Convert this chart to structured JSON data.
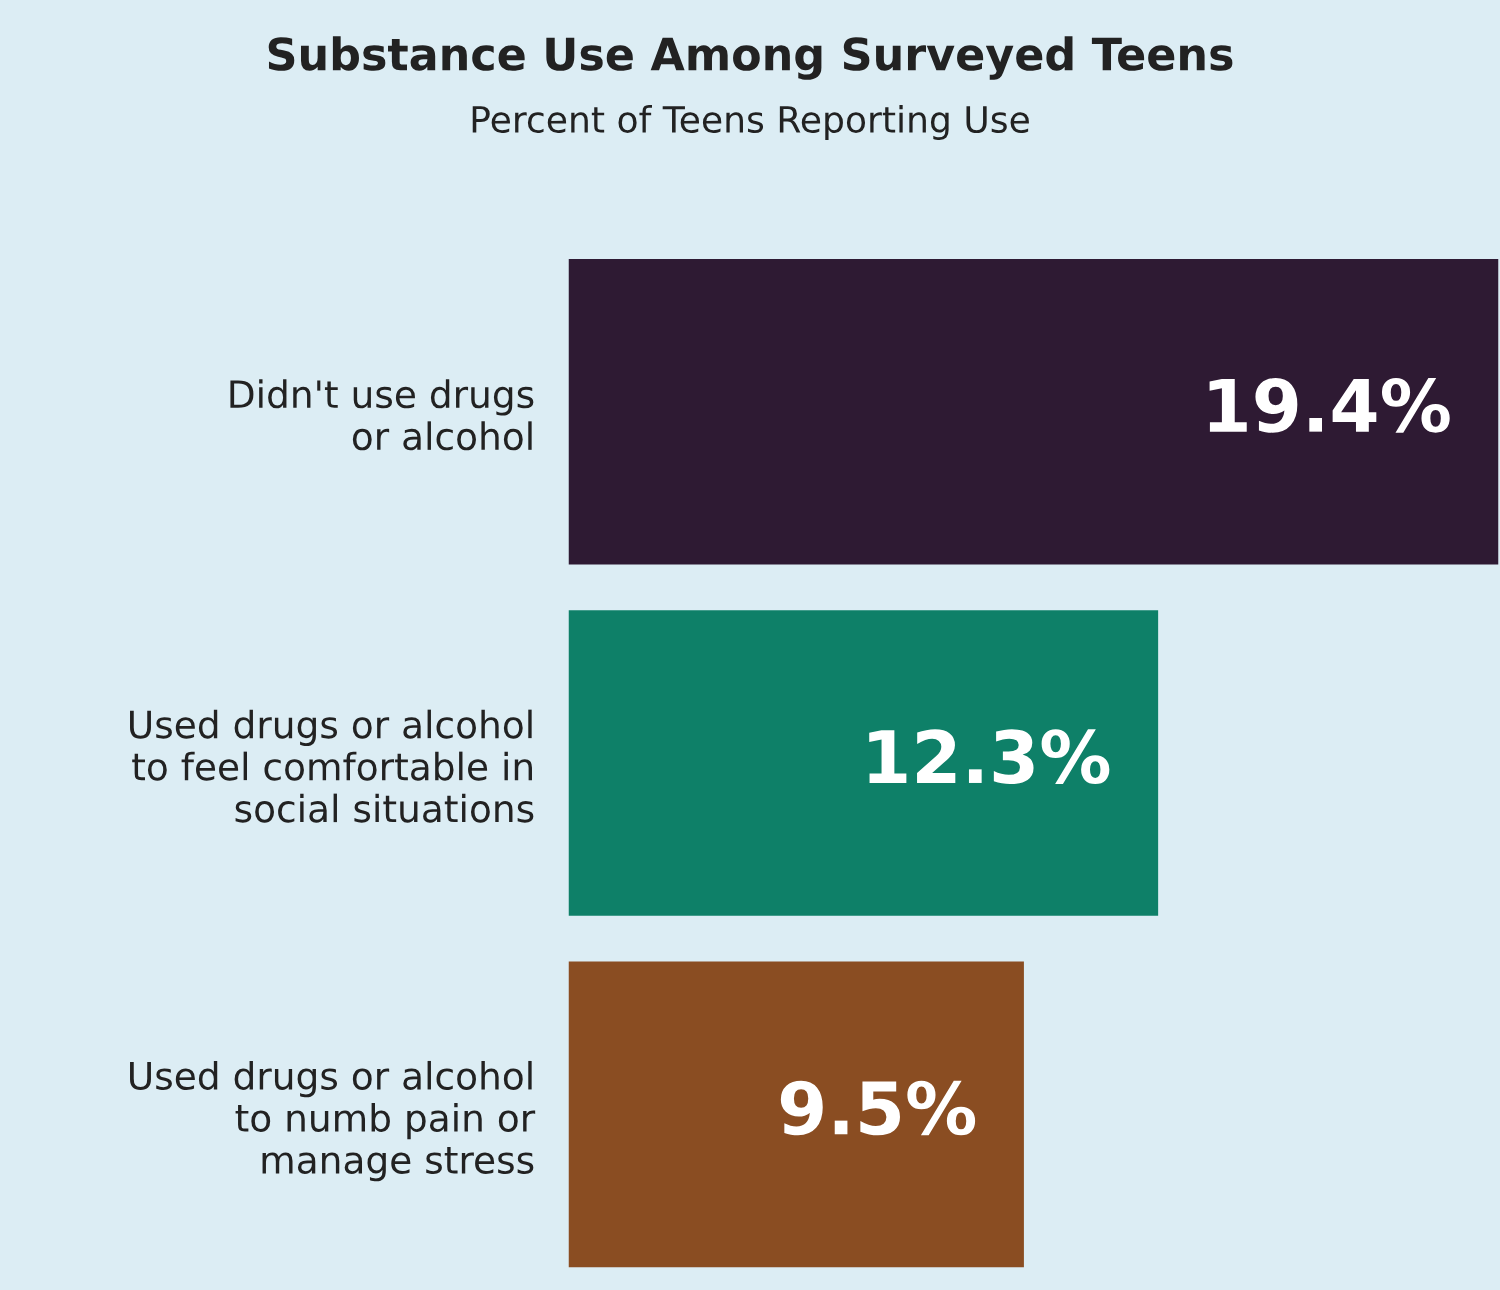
{
  "chart_data": {
    "type": "bar",
    "orientation": "horizontal",
    "title": "Substance Use Among Surveyed Teens",
    "subtitle": "Percent of Teens Reporting Use",
    "categories": [
      "Didn't use drugs\nor alcohol",
      "Used drugs or alcohol\nto feel comfortable in\nsocial situations",
      "Used drugs or alcohol\nto numb pain or\nmanage stress"
    ],
    "values": [
      19.4,
      12.3,
      9.5
    ],
    "colors": [
      "#2e1a33",
      "#0e8068",
      "#8a4d22"
    ],
    "value_labels": [
      "19.4%",
      "12.3%",
      "9.5%"
    ],
    "grid": false,
    "legend": false
  }
}
